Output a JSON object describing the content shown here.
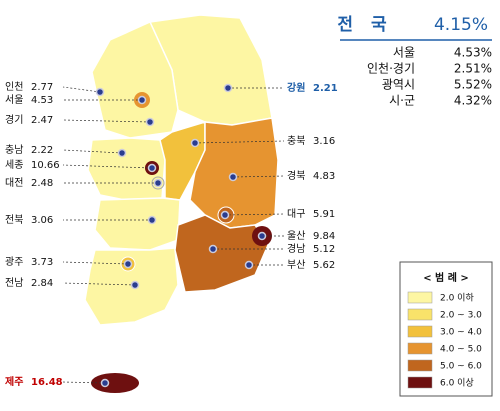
{
  "summary": {
    "title": "전 국",
    "value": "4.15%",
    "rows": [
      [
        "서울",
        "4.53%"
      ],
      [
        "인천·경기",
        "2.51%"
      ],
      [
        "광역시",
        "5.52%"
      ],
      [
        "시·군",
        "4.32%"
      ]
    ]
  },
  "regions": [
    {
      "name": "인천",
      "value": "2.77"
    },
    {
      "name": "서울",
      "value": "4.53"
    },
    {
      "name": "경기",
      "value": "2.47"
    },
    {
      "name": "충남",
      "value": "2.22"
    },
    {
      "name": "세종",
      "value": "10.66"
    },
    {
      "name": "대전",
      "value": "2.48"
    },
    {
      "name": "전북",
      "value": "3.06"
    },
    {
      "name": "광주",
      "value": "3.73"
    },
    {
      "name": "전남",
      "value": "2.84"
    },
    {
      "name": "제주",
      "value": "16.48"
    },
    {
      "name": "강원",
      "value": "2.21"
    },
    {
      "name": "충북",
      "value": "3.16"
    },
    {
      "name": "경북",
      "value": "4.83"
    },
    {
      "name": "대구",
      "value": "5.91"
    },
    {
      "name": "울산",
      "value": "9.84"
    },
    {
      "name": "경남",
      "value": "5.12"
    },
    {
      "name": "부산",
      "value": "5.62"
    }
  ],
  "legend": {
    "title": "< 범 례 >",
    "items": [
      {
        "label": "2.0 이하",
        "color": "#fdf6a3"
      },
      {
        "label": "2.0 ~ 3.0",
        "color": "#f9e36a"
      },
      {
        "label": "3.0 ~ 4.0",
        "color": "#f2c13c"
      },
      {
        "label": "4.0 ~ 5.0",
        "color": "#e69430"
      },
      {
        "label": "5.0 ~ 6.0",
        "color": "#c0661e"
      },
      {
        "label": "6.0 이상",
        "color": "#6e1010"
      }
    ]
  }
}
